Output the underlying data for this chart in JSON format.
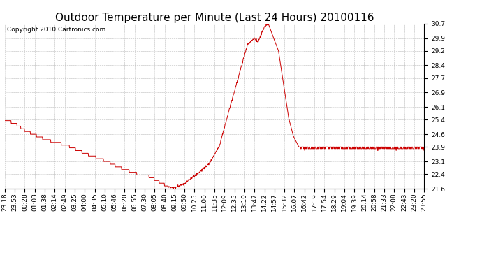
{
  "title": "Outdoor Temperature per Minute (Last 24 Hours) 20100116",
  "copyright_text": "Copyright 2010 Cartronics.com",
  "background_color": "#ffffff",
  "plot_bg_color": "#ffffff",
  "grid_color": "#bbbbbb",
  "line_color": "#cc0000",
  "yticks": [
    21.6,
    22.4,
    23.1,
    23.9,
    24.6,
    25.4,
    26.1,
    26.9,
    27.7,
    28.4,
    29.2,
    29.9,
    30.7
  ],
  "ylim": [
    21.6,
    30.7
  ],
  "xtick_labels": [
    "23:18",
    "23:53",
    "00:28",
    "01:03",
    "01:38",
    "02:14",
    "02:49",
    "03:25",
    "04:00",
    "04:35",
    "05:10",
    "05:46",
    "06:20",
    "06:55",
    "07:30",
    "08:05",
    "08:40",
    "09:15",
    "09:50",
    "10:25",
    "11:00",
    "11:35",
    "12:09",
    "12:35",
    "13:10",
    "13:47",
    "14:22",
    "14:57",
    "15:32",
    "16:07",
    "16:42",
    "17:19",
    "17:54",
    "18:29",
    "19:04",
    "19:39",
    "20:14",
    "20:58",
    "21:33",
    "22:08",
    "22:43",
    "23:20",
    "23:55"
  ],
  "title_fontsize": 11,
  "copyright_fontsize": 6.5,
  "tick_fontsize": 6.5,
  "figwidth": 6.9,
  "figheight": 3.75,
  "dpi": 100
}
